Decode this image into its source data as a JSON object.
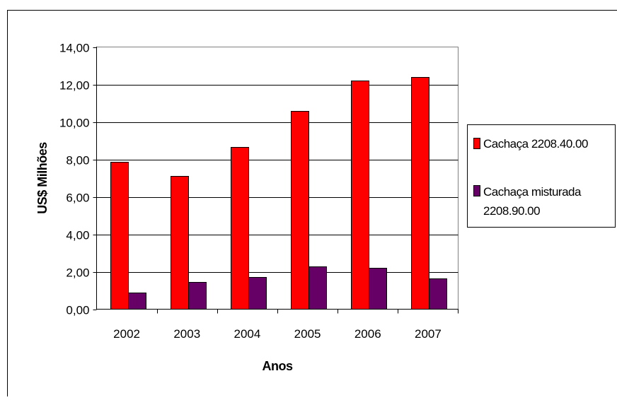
{
  "chart_data": {
    "type": "bar",
    "categories": [
      "2002",
      "2003",
      "2004",
      "2005",
      "2006",
      "2007"
    ],
    "series": [
      {
        "name": "Cachaça 2208.40.00",
        "values": [
          7.85,
          7.1,
          8.65,
          10.6,
          12.2,
          12.38
        ],
        "color": "#FF0000"
      },
      {
        "name": "Cachaça misturada 2208.90.00",
        "name_lines": [
          "Cachaça misturada",
          "2208.90.00"
        ],
        "values": [
          0.88,
          1.47,
          1.72,
          2.3,
          2.22,
          1.64
        ],
        "color": "#660066"
      }
    ],
    "xlabel": "Anos",
    "ylabel": "US$ Milhões",
    "ylim": [
      0,
      14
    ],
    "yticks": [
      "0,00",
      "2,00",
      "4,00",
      "6,00",
      "8,00",
      "10,00",
      "12,00",
      "14,00"
    ],
    "grid": true,
    "plot_background": "#FFFFFF",
    "legend_position": "right"
  }
}
